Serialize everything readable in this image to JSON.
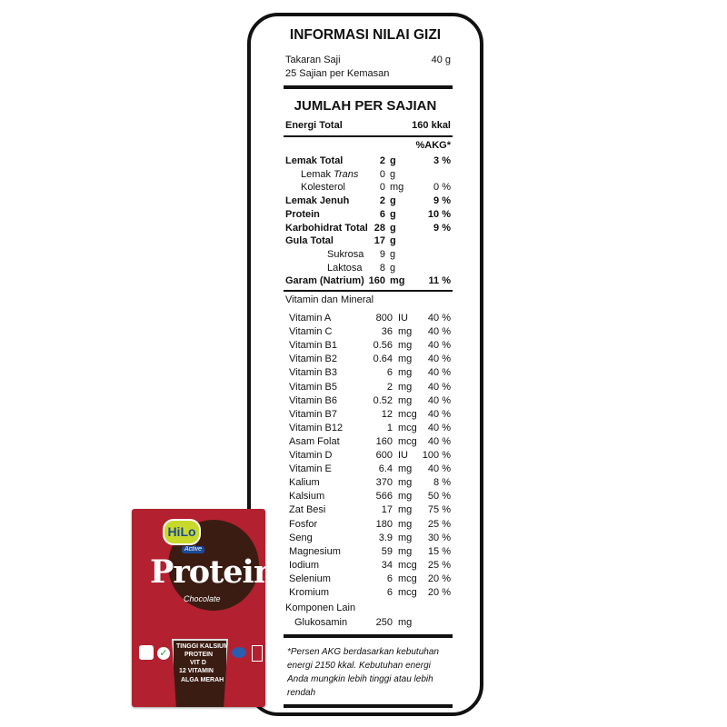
{
  "label": {
    "title": "INFORMASI NILAI GIZI",
    "serving_size_label": "Takaran Saji",
    "serving_size_value": "40 g",
    "servings_per_pack": "25 Sajian per Kemasan",
    "section_title": "JUMLAH PER SAJIAN",
    "energy_label": "Energi Total",
    "energy_value": "160 kkal",
    "akg_header": "%AKG*",
    "nutrients": [
      {
        "name": "Lemak Total",
        "value": "2",
        "unit": "g",
        "pct": "3 %",
        "bold": true,
        "indent": 0
      },
      {
        "name": "Lemak Trans",
        "value": "0",
        "unit": "g",
        "pct": "",
        "bold": false,
        "indent": 1
      },
      {
        "name": "Kolesterol",
        "value": "0",
        "unit": "mg",
        "pct": "0 %",
        "bold": false,
        "indent": 1
      },
      {
        "name": "Lemak Jenuh",
        "value": "2",
        "unit": "g",
        "pct": "9 %",
        "bold": true,
        "indent": 0
      },
      {
        "name": "Protein",
        "value": "6",
        "unit": "g",
        "pct": "10 %",
        "bold": true,
        "indent": 0
      },
      {
        "name": "Karbohidrat Total",
        "value": "28",
        "unit": "g",
        "pct": "9 %",
        "bold": true,
        "indent": 0
      },
      {
        "name": "Gula Total",
        "value": "17",
        "unit": "g",
        "pct": "",
        "bold": true,
        "indent": 0
      },
      {
        "name": "Sukrosa",
        "value": "9",
        "unit": "g",
        "pct": "",
        "bold": false,
        "indent": 2
      },
      {
        "name": "Laktosa",
        "value": "8",
        "unit": "g",
        "pct": "",
        "bold": false,
        "indent": 2
      },
      {
        "name": "Garam (Natrium)",
        "value": "160",
        "unit": "mg",
        "pct": "11 %",
        "bold": true,
        "indent": 0
      }
    ],
    "vitamin_header": "Vitamin dan Mineral",
    "vitamins": [
      {
        "name": "Vitamin A",
        "value": "800",
        "unit": "IU",
        "pct": "40 %"
      },
      {
        "name": "Vitamin C",
        "value": "36",
        "unit": "mg",
        "pct": "40 %"
      },
      {
        "name": "Vitamin B1",
        "value": "0.56",
        "unit": "mg",
        "pct": "40 %"
      },
      {
        "name": "Vitamin B2",
        "value": "0.64",
        "unit": "mg",
        "pct": "40 %"
      },
      {
        "name": "Vitamin B3",
        "value": "6",
        "unit": "mg",
        "pct": "40 %"
      },
      {
        "name": "Vitamin B5",
        "value": "2",
        "unit": "mg",
        "pct": "40 %"
      },
      {
        "name": "Vitamin B6",
        "value": "0.52",
        "unit": "mg",
        "pct": "40 %"
      },
      {
        "name": "Vitamin B7",
        "value": "12",
        "unit": "mcg",
        "pct": "40 %"
      },
      {
        "name": "Vitamin B12",
        "value": "1",
        "unit": "mcg",
        "pct": "40 %"
      },
      {
        "name": "Asam Folat",
        "value": "160",
        "unit": "mcg",
        "pct": "40 %"
      },
      {
        "name": "Vitamin D",
        "value": "600",
        "unit": "IU",
        "pct": "100 %"
      },
      {
        "name": "Vitamin E",
        "value": "6.4",
        "unit": "mg",
        "pct": "40 %"
      },
      {
        "name": "Kalium",
        "value": "370",
        "unit": "mg",
        "pct": "8 %"
      },
      {
        "name": "Kalsium",
        "value": "566",
        "unit": "mg",
        "pct": "50 %"
      },
      {
        "name": "Zat Besi",
        "value": "17",
        "unit": "mg",
        "pct": "75 %"
      },
      {
        "name": "Fosfor",
        "value": "180",
        "unit": "mg",
        "pct": "25 %"
      },
      {
        "name": "Seng",
        "value": "3.9",
        "unit": "mg",
        "pct": "30 %"
      },
      {
        "name": "Magnesium",
        "value": "59",
        "unit": "mg",
        "pct": "15 %"
      },
      {
        "name": "Iodium",
        "value": "34",
        "unit": "mcg",
        "pct": "25 %"
      },
      {
        "name": "Selenium",
        "value": "6",
        "unit": "mcg",
        "pct": "20 %"
      },
      {
        "name": "Kromium",
        "value": "6",
        "unit": "mcg",
        "pct": "20 %"
      }
    ],
    "other_header": "Komponen Lain",
    "other": [
      {
        "name": "Glukosamin",
        "value": "250",
        "unit": "mg"
      }
    ],
    "footnote": "*Persen AKG berdasarkan kebutuhan energi 2150 kkal. Kebutuhan energi Anda mungkin lebih tinggi atau lebih rendah"
  },
  "product": {
    "brand": "HiLo",
    "sub_brand": "Active",
    "name": "Protein",
    "flavor": "Chocolate",
    "claim_1": "TINGGI KALSIUM",
    "claim_2": "PROTEIN",
    "claim_3": "12 VITAMIN",
    "claim_4": "VIT D",
    "claim_5": "ALGA MERAH",
    "colors": {
      "box": "#b3202f",
      "chocolate": "#3b1c12",
      "logo": "#c8d92b"
    }
  }
}
